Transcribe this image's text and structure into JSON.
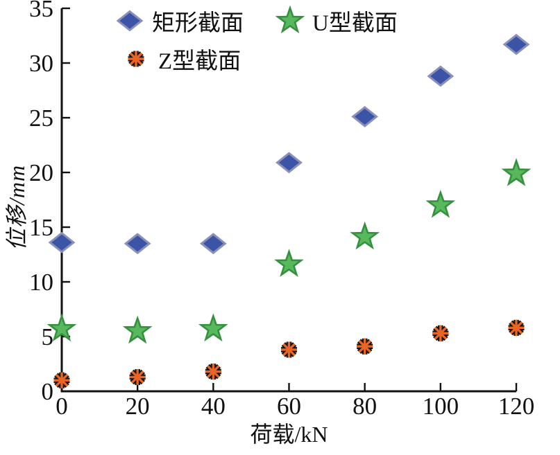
{
  "chart_data": {
    "type": "scatter",
    "title": "",
    "xlabel": "荷载/kN",
    "ylabel": "位移/mm",
    "xlim": [
      0,
      120
    ],
    "ylim": [
      0,
      35
    ],
    "x_ticks": [
      0,
      20,
      40,
      60,
      80,
      100,
      120
    ],
    "y_ticks": [
      0,
      5,
      10,
      15,
      20,
      25,
      30,
      35
    ],
    "grid": false,
    "legend_position": "inside-top-left",
    "x": [
      0,
      20,
      40,
      60,
      80,
      100,
      120
    ],
    "series": [
      {
        "name": "矩形截面",
        "marker": "diamond",
        "color": "#3b54a5",
        "edge_color": "#8a90ba",
        "values": [
          13.6,
          13.5,
          13.5,
          20.9,
          25.1,
          28.8,
          31.7
        ]
      },
      {
        "name": "U型截面",
        "marker": "star",
        "color": "#58b95c",
        "edge_color": "#35903f",
        "values": [
          5.7,
          5.5,
          5.7,
          11.6,
          14.1,
          17.0,
          19.9
        ]
      },
      {
        "name": "Z型截面",
        "marker": "asterisk",
        "color": "#ea6426",
        "edge_color": "#141414",
        "values": [
          1.0,
          1.3,
          1.8,
          3.8,
          4.1,
          5.3,
          5.8
        ]
      }
    ],
    "axis_color": "#111111",
    "text_color": "#111111"
  }
}
